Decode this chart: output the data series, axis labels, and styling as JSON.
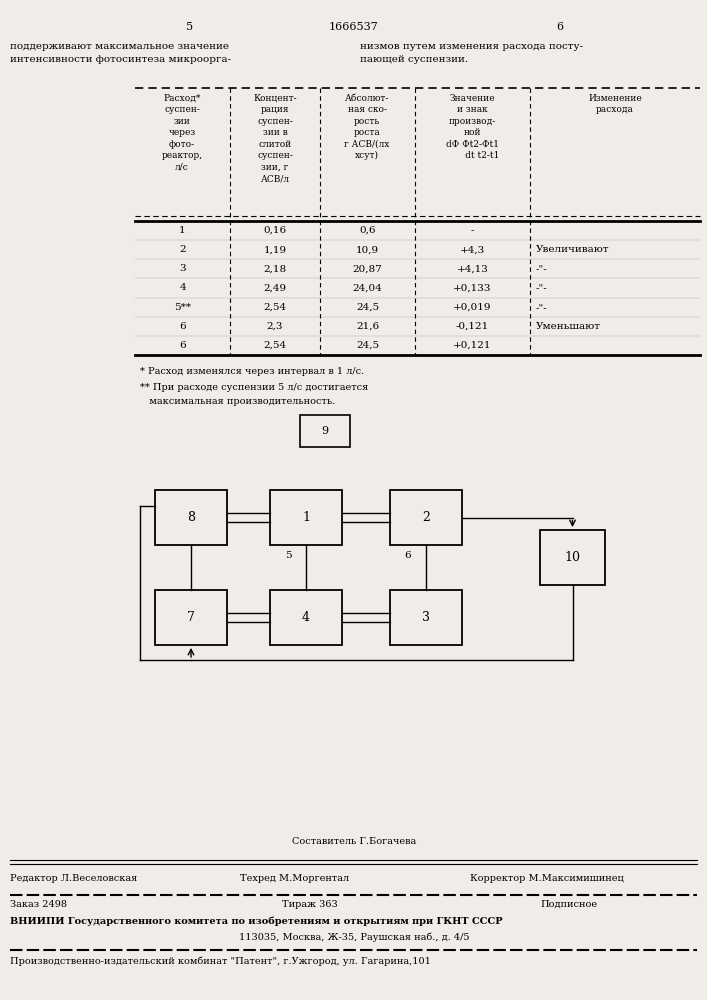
{
  "page_num_left": "5",
  "page_num_center": "1666537",
  "page_num_right": "6",
  "text_left": "поддерживают максимальное значение\nинтенсивности фотосинтеза микроорга-",
  "text_right": "низмов путем изменения расхода посту-\nпающей суспензии.",
  "table_rows": [
    [
      "1",
      "0,16",
      "0,6",
      "-",
      ""
    ],
    [
      "2",
      "1,19",
      "10,9",
      "+4,3",
      "Увеличивают"
    ],
    [
      "3",
      "2,18",
      "20,87",
      "+4,13",
      "-\"-"
    ],
    [
      "4",
      "2,49",
      "24,04",
      "+0,133",
      "-\"-"
    ],
    [
      "5**",
      "2,54",
      "24,5",
      "+0,019",
      "-\"-"
    ],
    [
      "6",
      "2,3",
      "21,6",
      "-0,121",
      "Уменьшают"
    ],
    [
      "6",
      "2,54",
      "24,5",
      "+0,121",
      ""
    ]
  ],
  "footnote1": "* Расход изменялся через интервал в 1 л/с.",
  "footnote2_line1": "** При расходе суспензии 5 л/с достигается",
  "footnote2_line2": "   максимальная производительность.",
  "box9_label": "9",
  "footer_editor": "Редактор Л.Веселовская",
  "footer_composer": "Составитель Г.Богачева",
  "footer_tech": "Техред М.Моргентал",
  "footer_corrector": "Корректор М.Максимишинец",
  "footer_order": "Заказ 2498",
  "footer_print": "Тираж 363",
  "footer_sign": "Подписное",
  "footer_vnipi": "ВНИИПИ Государственного комитета по изобретениям и открытиям при ГКНТ СССР",
  "footer_address": "113035, Москва, Ж-35, Раушская наб., д. 4/5",
  "footer_factory": "Производственно-издательский комбинат \"Патент\", г.Ужгород, ул. Гагарина,101",
  "bg_color": "#f0ede8"
}
